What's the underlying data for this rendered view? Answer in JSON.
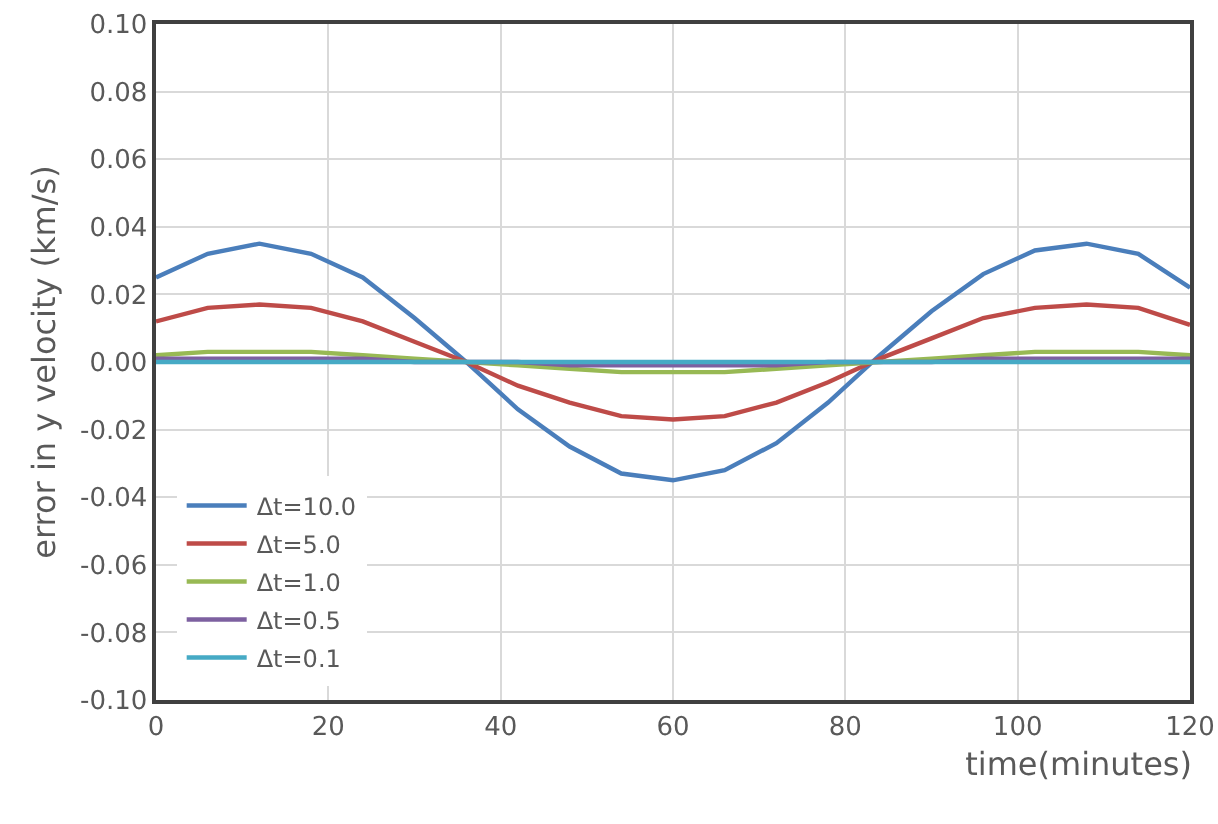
{
  "chart_data": {
    "type": "line",
    "xlabel": "time(minutes)",
    "ylabel": "error in y velocity (km/s)",
    "x": [
      0,
      6,
      12,
      18,
      24,
      30,
      36,
      42,
      48,
      54,
      60,
      66,
      72,
      78,
      84,
      90,
      96,
      102,
      108,
      114,
      120
    ],
    "series": [
      {
        "name": "Δt=10.0",
        "color": "#4a7ebb",
        "values": [
          0.025,
          0.032,
          0.035,
          0.032,
          0.025,
          0.013,
          0.0,
          -0.014,
          -0.025,
          -0.033,
          -0.035,
          -0.032,
          -0.024,
          -0.012,
          0.002,
          0.015,
          0.026,
          0.033,
          0.035,
          0.032,
          0.022
        ]
      },
      {
        "name": "Δt=5.0",
        "color": "#be4b48",
        "values": [
          0.012,
          0.016,
          0.017,
          0.016,
          0.012,
          0.006,
          0.0,
          -0.007,
          -0.012,
          -0.016,
          -0.017,
          -0.016,
          -0.012,
          -0.006,
          0.001,
          0.007,
          0.013,
          0.016,
          0.017,
          0.016,
          0.011
        ]
      },
      {
        "name": "Δt=1.0",
        "color": "#98b954",
        "values": [
          0.002,
          0.003,
          0.003,
          0.003,
          0.002,
          0.001,
          0.0,
          -0.001,
          -0.002,
          -0.003,
          -0.003,
          -0.003,
          -0.002,
          -0.001,
          0.0,
          0.001,
          0.002,
          0.003,
          0.003,
          0.003,
          0.002
        ]
      },
      {
        "name": "Δt=0.5",
        "color": "#7d60a0",
        "values": [
          0.001,
          0.001,
          0.001,
          0.001,
          0.001,
          0.0,
          0.0,
          0.0,
          -0.001,
          -0.001,
          -0.001,
          -0.001,
          -0.001,
          0.0,
          0.0,
          0.0,
          0.001,
          0.001,
          0.001,
          0.001,
          0.001
        ]
      },
      {
        "name": "Δt=0.1",
        "color": "#46aac5",
        "values": [
          0,
          0,
          0,
          0,
          0,
          0,
          0,
          0,
          0,
          0,
          0,
          0,
          0,
          0,
          0,
          0,
          0,
          0,
          0,
          0,
          0
        ]
      }
    ],
    "xlim": [
      0,
      120
    ],
    "xticks": [
      0,
      20,
      40,
      60,
      80,
      100,
      120
    ],
    "ylim": [
      -0.1,
      0.1
    ],
    "yticks": [
      {
        "value": -0.1,
        "label": "-0.10"
      },
      {
        "value": -0.08,
        "label": "-0.08"
      },
      {
        "value": -0.06,
        "label": "-0.06"
      },
      {
        "value": -0.04,
        "label": "-0.04"
      },
      {
        "value": -0.02,
        "label": "-0.02"
      },
      {
        "value": 0,
        "label": "0.00"
      },
      {
        "value": 0.02,
        "label": "0.02"
      },
      {
        "value": 0.04,
        "label": "0.04"
      },
      {
        "value": 0.06,
        "label": "0.06"
      },
      {
        "value": 0.08,
        "label": "0.08"
      },
      {
        "value": 0.1,
        "label": "0.10"
      }
    ],
    "grid": true,
    "legend": "bottom left",
    "marker": "none",
    "line_style": "solid"
  }
}
